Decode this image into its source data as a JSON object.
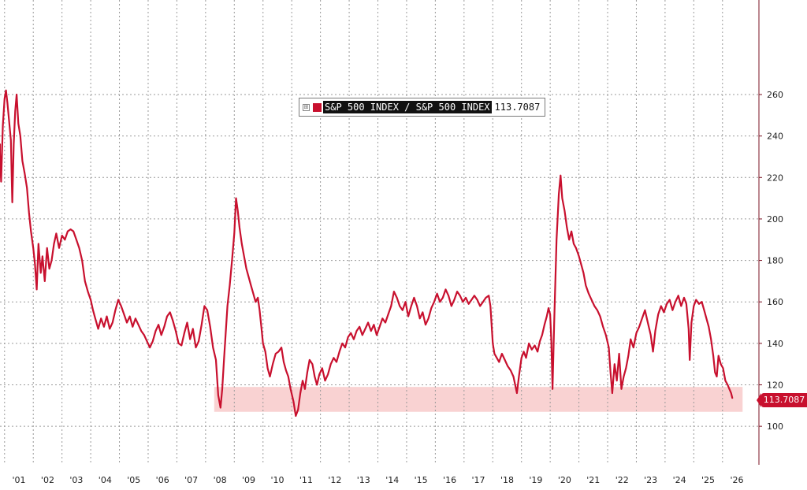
{
  "chart_data": {
    "type": "line",
    "title": "",
    "xlabel": "",
    "ylabel": "",
    "x_tick_labels": [
      "'01",
      "'02",
      "'03",
      "'04",
      "'05",
      "'06",
      "'07",
      "'08",
      "'09",
      "'10",
      "'11",
      "'12",
      "'13",
      "'14",
      "'15",
      "'16",
      "'17",
      "'18",
      "'19",
      "'20",
      "'21",
      "'22",
      "'23",
      "'24",
      "'25",
      "'26"
    ],
    "y_ticks": [
      100,
      120,
      140,
      160,
      180,
      200,
      220,
      240,
      260
    ],
    "ylim": [
      88,
      265
    ],
    "xlim": [
      2000.5,
      2026.7
    ],
    "grid": true,
    "legend_placement": "top-center",
    "y_axis_side": "right",
    "series": [
      {
        "name": "S&P 500 INDEX / S&P 500 INDEX",
        "last_value": "113.7087",
        "color": "#c8102e",
        "points": [
          [
            2000.5,
            228
          ],
          [
            2000.62,
            236
          ],
          [
            2000.72,
            225
          ],
          [
            2000.8,
            232
          ],
          [
            2000.88,
            218
          ],
          [
            2000.94,
            245
          ],
          [
            2001.0,
            258
          ],
          [
            2001.05,
            262
          ],
          [
            2001.1,
            256
          ],
          [
            2001.16,
            247
          ],
          [
            2001.22,
            238
          ],
          [
            2001.27,
            208
          ],
          [
            2001.32,
            236
          ],
          [
            2001.37,
            252
          ],
          [
            2001.42,
            260
          ],
          [
            2001.48,
            246
          ],
          [
            2001.55,
            240
          ],
          [
            2001.62,
            228
          ],
          [
            2001.7,
            222
          ],
          [
            2001.78,
            215
          ],
          [
            2001.85,
            203
          ],
          [
            2001.92,
            194
          ],
          [
            2002.0,
            186
          ],
          [
            2002.06,
            178
          ],
          [
            2002.12,
            166
          ],
          [
            2002.18,
            188
          ],
          [
            2002.26,
            174
          ],
          [
            2002.32,
            182
          ],
          [
            2002.4,
            170
          ],
          [
            2002.48,
            186
          ],
          [
            2002.56,
            176
          ],
          [
            2002.64,
            180
          ],
          [
            2002.72,
            188
          ],
          [
            2002.8,
            193
          ],
          [
            2002.9,
            186
          ],
          [
            2003.0,
            192
          ],
          [
            2003.1,
            190
          ],
          [
            2003.2,
            194
          ],
          [
            2003.3,
            195
          ],
          [
            2003.4,
            194
          ],
          [
            2003.5,
            190
          ],
          [
            2003.6,
            186
          ],
          [
            2003.7,
            180
          ],
          [
            2003.8,
            170
          ],
          [
            2003.9,
            165
          ],
          [
            2004.0,
            161
          ],
          [
            2004.08,
            156
          ],
          [
            2004.16,
            152
          ],
          [
            2004.26,
            147
          ],
          [
            2004.36,
            152
          ],
          [
            2004.46,
            148
          ],
          [
            2004.56,
            153
          ],
          [
            2004.66,
            147
          ],
          [
            2004.76,
            150
          ],
          [
            2004.86,
            156
          ],
          [
            2004.96,
            161
          ],
          [
            2005.06,
            158
          ],
          [
            2005.16,
            154
          ],
          [
            2005.26,
            150
          ],
          [
            2005.36,
            153
          ],
          [
            2005.46,
            148
          ],
          [
            2005.56,
            152
          ],
          [
            2005.66,
            149
          ],
          [
            2005.76,
            146
          ],
          [
            2005.86,
            144
          ],
          [
            2005.96,
            141
          ],
          [
            2006.06,
            138
          ],
          [
            2006.16,
            141
          ],
          [
            2006.26,
            146
          ],
          [
            2006.36,
            149
          ],
          [
            2006.46,
            144
          ],
          [
            2006.56,
            148
          ],
          [
            2006.66,
            153
          ],
          [
            2006.76,
            155
          ],
          [
            2006.86,
            151
          ],
          [
            2006.96,
            146
          ],
          [
            2007.06,
            140
          ],
          [
            2007.16,
            139
          ],
          [
            2007.26,
            145
          ],
          [
            2007.36,
            150
          ],
          [
            2007.46,
            142
          ],
          [
            2007.56,
            147
          ],
          [
            2007.66,
            138
          ],
          [
            2007.76,
            141
          ],
          [
            2007.86,
            149
          ],
          [
            2007.96,
            158
          ],
          [
            2008.06,
            156
          ],
          [
            2008.16,
            148
          ],
          [
            2008.26,
            138
          ],
          [
            2008.36,
            132
          ],
          [
            2008.44,
            115
          ],
          [
            2008.52,
            109
          ],
          [
            2008.58,
            118
          ],
          [
            2008.64,
            132
          ],
          [
            2008.7,
            145
          ],
          [
            2008.76,
            158
          ],
          [
            2008.84,
            168
          ],
          [
            2008.92,
            180
          ],
          [
            2009.0,
            193
          ],
          [
            2009.06,
            210
          ],
          [
            2009.12,
            204
          ],
          [
            2009.18,
            196
          ],
          [
            2009.26,
            188
          ],
          [
            2009.34,
            182
          ],
          [
            2009.42,
            176
          ],
          [
            2009.5,
            172
          ],
          [
            2009.58,
            168
          ],
          [
            2009.66,
            164
          ],
          [
            2009.74,
            160
          ],
          [
            2009.82,
            162
          ],
          [
            2009.88,
            156
          ],
          [
            2009.94,
            148
          ],
          [
            2010.0,
            140
          ],
          [
            2010.08,
            136
          ],
          [
            2010.16,
            128
          ],
          [
            2010.24,
            124
          ],
          [
            2010.34,
            130
          ],
          [
            2010.44,
            135
          ],
          [
            2010.54,
            136
          ],
          [
            2010.64,
            138
          ],
          [
            2010.72,
            131
          ],
          [
            2010.8,
            127
          ],
          [
            2010.88,
            124
          ],
          [
            2010.96,
            118
          ],
          [
            2011.06,
            112
          ],
          [
            2011.14,
            105
          ],
          [
            2011.22,
            108
          ],
          [
            2011.3,
            116
          ],
          [
            2011.38,
            122
          ],
          [
            2011.46,
            118
          ],
          [
            2011.54,
            126
          ],
          [
            2011.62,
            132
          ],
          [
            2011.72,
            130
          ],
          [
            2011.8,
            124
          ],
          [
            2011.88,
            120
          ],
          [
            2011.96,
            125
          ],
          [
            2012.06,
            128
          ],
          [
            2012.16,
            122
          ],
          [
            2012.26,
            125
          ],
          [
            2012.36,
            130
          ],
          [
            2012.46,
            133
          ],
          [
            2012.56,
            131
          ],
          [
            2012.66,
            136
          ],
          [
            2012.76,
            140
          ],
          [
            2012.86,
            138
          ],
          [
            2012.96,
            143
          ],
          [
            2013.06,
            145
          ],
          [
            2013.16,
            142
          ],
          [
            2013.26,
            146
          ],
          [
            2013.36,
            148
          ],
          [
            2013.46,
            144
          ],
          [
            2013.56,
            147
          ],
          [
            2013.66,
            150
          ],
          [
            2013.76,
            146
          ],
          [
            2013.86,
            149
          ],
          [
            2013.96,
            144
          ],
          [
            2014.06,
            148
          ],
          [
            2014.16,
            152
          ],
          [
            2014.26,
            150
          ],
          [
            2014.36,
            154
          ],
          [
            2014.46,
            158
          ],
          [
            2014.56,
            165
          ],
          [
            2014.66,
            162
          ],
          [
            2014.76,
            158
          ],
          [
            2014.86,
            156
          ],
          [
            2014.96,
            160
          ],
          [
            2015.06,
            153
          ],
          [
            2015.16,
            158
          ],
          [
            2015.26,
            162
          ],
          [
            2015.36,
            158
          ],
          [
            2015.46,
            152
          ],
          [
            2015.56,
            155
          ],
          [
            2015.66,
            149
          ],
          [
            2015.76,
            152
          ],
          [
            2015.86,
            157
          ],
          [
            2015.96,
            160
          ],
          [
            2016.06,
            164
          ],
          [
            2016.16,
            160
          ],
          [
            2016.26,
            162
          ],
          [
            2016.36,
            166
          ],
          [
            2016.46,
            163
          ],
          [
            2016.56,
            158
          ],
          [
            2016.66,
            161
          ],
          [
            2016.76,
            165
          ],
          [
            2016.86,
            163
          ],
          [
            2016.96,
            160
          ],
          [
            2017.06,
            162
          ],
          [
            2017.16,
            159
          ],
          [
            2017.26,
            161
          ],
          [
            2017.36,
            163
          ],
          [
            2017.46,
            161
          ],
          [
            2017.56,
            158
          ],
          [
            2017.66,
            160
          ],
          [
            2017.76,
            162
          ],
          [
            2017.86,
            163
          ],
          [
            2017.92,
            158
          ],
          [
            2018.0,
            140
          ],
          [
            2018.06,
            135
          ],
          [
            2018.14,
            133
          ],
          [
            2018.22,
            131
          ],
          [
            2018.32,
            135
          ],
          [
            2018.42,
            132
          ],
          [
            2018.52,
            129
          ],
          [
            2018.62,
            127
          ],
          [
            2018.72,
            124
          ],
          [
            2018.78,
            120
          ],
          [
            2018.84,
            116
          ],
          [
            2018.92,
            125
          ],
          [
            2019.0,
            133
          ],
          [
            2019.08,
            136
          ],
          [
            2019.16,
            133
          ],
          [
            2019.26,
            140
          ],
          [
            2019.36,
            137
          ],
          [
            2019.46,
            139
          ],
          [
            2019.56,
            136
          ],
          [
            2019.64,
            141
          ],
          [
            2019.72,
            144
          ],
          [
            2019.8,
            149
          ],
          [
            2019.88,
            153
          ],
          [
            2019.94,
            157
          ],
          [
            2020.0,
            154
          ],
          [
            2020.04,
            141
          ],
          [
            2020.08,
            118
          ],
          [
            2020.14,
            150
          ],
          [
            2020.22,
            190
          ],
          [
            2020.3,
            212
          ],
          [
            2020.36,
            221
          ],
          [
            2020.42,
            210
          ],
          [
            2020.5,
            204
          ],
          [
            2020.58,
            196
          ],
          [
            2020.66,
            190
          ],
          [
            2020.74,
            194
          ],
          [
            2020.82,
            188
          ],
          [
            2020.9,
            186
          ],
          [
            2021.0,
            182
          ],
          [
            2021.08,
            178
          ],
          [
            2021.16,
            174
          ],
          [
            2021.24,
            168
          ],
          [
            2021.34,
            164
          ],
          [
            2021.44,
            161
          ],
          [
            2021.54,
            158
          ],
          [
            2021.64,
            156
          ],
          [
            2021.74,
            153
          ],
          [
            2021.84,
            148
          ],
          [
            2021.94,
            144
          ],
          [
            2022.04,
            138
          ],
          [
            2022.1,
            126
          ],
          [
            2022.16,
            116
          ],
          [
            2022.24,
            130
          ],
          [
            2022.32,
            122
          ],
          [
            2022.4,
            135
          ],
          [
            2022.48,
            118
          ],
          [
            2022.56,
            124
          ],
          [
            2022.64,
            128
          ],
          [
            2022.72,
            134
          ],
          [
            2022.8,
            142
          ],
          [
            2022.9,
            138
          ],
          [
            2023.0,
            145
          ],
          [
            2023.1,
            148
          ],
          [
            2023.2,
            152
          ],
          [
            2023.3,
            156
          ],
          [
            2023.4,
            150
          ],
          [
            2023.5,
            144
          ],
          [
            2023.58,
            136
          ],
          [
            2023.66,
            146
          ],
          [
            2023.76,
            154
          ],
          [
            2023.86,
            158
          ],
          [
            2023.96,
            155
          ],
          [
            2024.06,
            159
          ],
          [
            2024.16,
            161
          ],
          [
            2024.26,
            156
          ],
          [
            2024.36,
            160
          ],
          [
            2024.46,
            163
          ],
          [
            2024.56,
            158
          ],
          [
            2024.66,
            162
          ],
          [
            2024.74,
            159
          ],
          [
            2024.82,
            147
          ],
          [
            2024.86,
            132
          ],
          [
            2024.92,
            150
          ],
          [
            2025.0,
            158
          ],
          [
            2025.08,
            161
          ],
          [
            2025.18,
            159
          ],
          [
            2025.28,
            160
          ],
          [
            2025.36,
            156
          ],
          [
            2025.44,
            152
          ],
          [
            2025.52,
            148
          ],
          [
            2025.6,
            142
          ],
          [
            2025.68,
            134
          ],
          [
            2025.74,
            126
          ],
          [
            2025.8,
            124
          ],
          [
            2025.86,
            134
          ],
          [
            2025.94,
            130
          ],
          [
            2026.02,
            128
          ],
          [
            2026.1,
            122
          ],
          [
            2026.18,
            120
          ],
          [
            2026.24,
            118
          ],
          [
            2026.3,
            116
          ],
          [
            2026.34,
            113.7087
          ]
        ]
      }
    ],
    "shaded_band": {
      "y_from": 107,
      "y_to": 119,
      "x_from": 2008.3,
      "x_to": 2026.7,
      "color": "#f9d2d2"
    }
  },
  "legend": {
    "expand_glyph": "⊞",
    "name": "S&P 500 INDEX / S&P 500 INDEX",
    "value": "113.7087"
  },
  "last_value_tag": "113.7087"
}
